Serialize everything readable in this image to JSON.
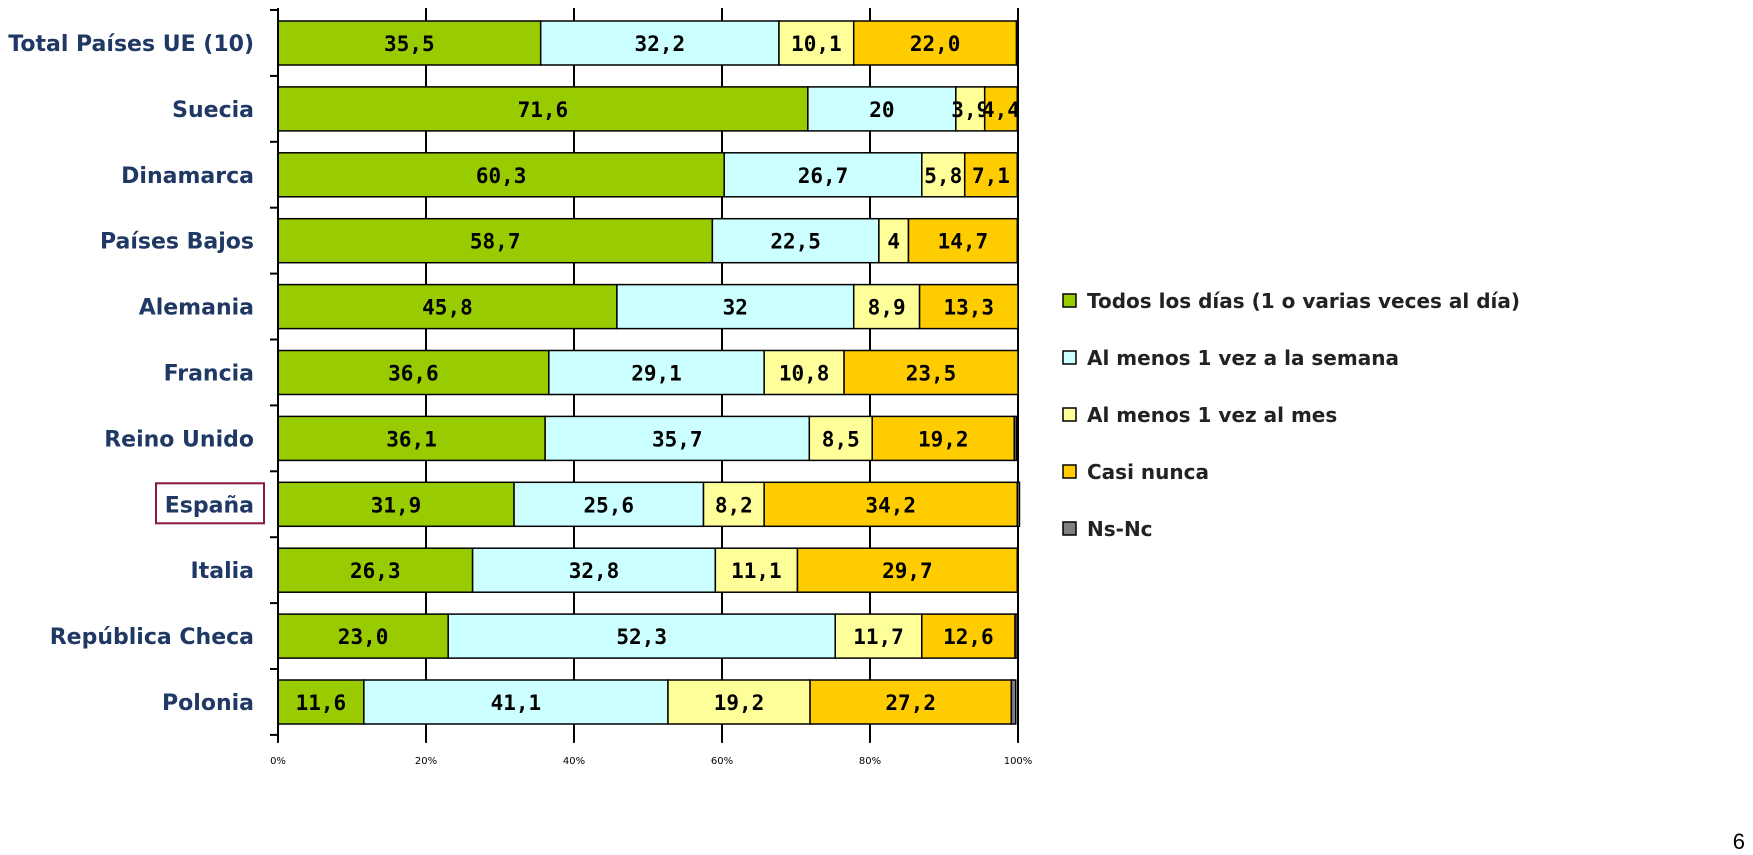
{
  "page_number": "6",
  "highlight_category": "España",
  "colors": {
    "Todos los días (1 o varias veces al día)": "#99cc00",
    "Al menos 1 vez a la semana": "#ccffff",
    "Al menos 1 vez al mes": "#ffff99",
    "Casi nunca": "#ffcc00",
    "Ns-Nc": "#808080",
    "category_text": "#1f3864",
    "highlight_box": "#8b1a3a"
  },
  "chart_data": {
    "type": "bar",
    "orientation": "horizontal",
    "stacked": "percent",
    "title": "",
    "xlabel": "",
    "ylabel": "",
    "xlim": [
      0,
      100
    ],
    "x_ticks": [
      "0%",
      "20%",
      "40%",
      "60%",
      "80%",
      "100%"
    ],
    "legend_position": "right",
    "categories": [
      "Total Países UE (10)",
      "Suecia",
      "Dinamarca",
      "Países Bajos",
      "Alemania",
      "Francia",
      "Reino Unido",
      "España",
      "Italia",
      "República Checa",
      "Polonia"
    ],
    "series": [
      {
        "name": "Todos los días (1 o varias veces al día)",
        "values": [
          35.5,
          71.6,
          60.3,
          58.7,
          45.8,
          36.6,
          36.1,
          31.9,
          26.3,
          23.0,
          11.6
        ],
        "labels": [
          "35,5",
          "71,6",
          "60,3",
          "58,7",
          "45,8",
          "36,6",
          "36,1",
          "31,9",
          "26,3",
          "23,0",
          "11,6"
        ]
      },
      {
        "name": "Al menos 1 vez a la semana",
        "values": [
          32.2,
          20,
          26.7,
          22.5,
          32,
          29.1,
          35.7,
          25.6,
          32.8,
          52.3,
          41.1
        ],
        "labels": [
          "32,2",
          "20",
          "26,7",
          "22,5",
          "32",
          "29,1",
          "35,7",
          "25,6",
          "32,8",
          "52,3",
          "41,1"
        ]
      },
      {
        "name": "Al menos 1 vez al mes",
        "values": [
          10.1,
          3.9,
          5.8,
          4,
          8.9,
          10.8,
          8.5,
          8.2,
          11.1,
          11.7,
          19.2
        ],
        "labels": [
          "10,1",
          "3,9",
          "5,8",
          "4",
          "8,9",
          "10,8",
          "8,5",
          "8,2",
          "11,1",
          "11,7",
          "19,2"
        ]
      },
      {
        "name": "Casi nunca",
        "values": [
          22.0,
          4.4,
          7.1,
          14.7,
          13.3,
          23.5,
          19.2,
          34.2,
          29.7,
          12.6,
          27.2
        ],
        "labels": [
          "22,0",
          "4,4",
          "7,1",
          "14,7",
          "13,3",
          "23,5",
          "19,2",
          "34,2",
          "29,7",
          "12,6",
          "27,2"
        ]
      },
      {
        "name": "Ns-Nc",
        "values": [
          0.2,
          0,
          0,
          0,
          0,
          0,
          0.3,
          0.3,
          0,
          0.3,
          0.6
        ],
        "labels": [
          "",
          "",
          "",
          "",
          "",
          "",
          "",
          "",
          "",
          "",
          ""
        ]
      }
    ]
  }
}
